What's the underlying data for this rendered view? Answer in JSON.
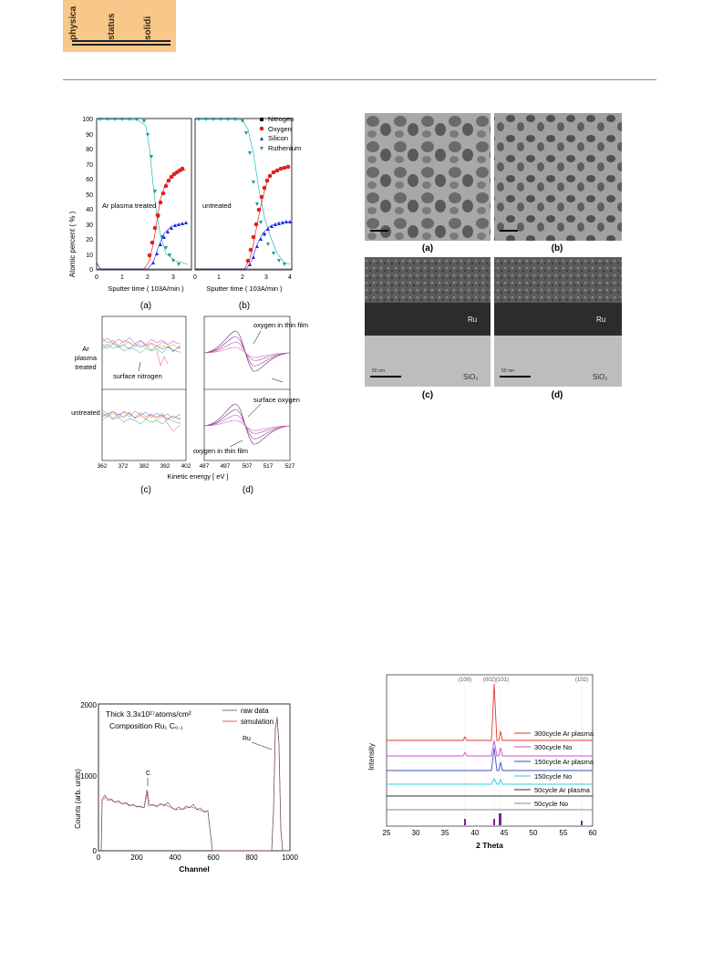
{
  "header": {
    "logo_words": [
      "physica",
      "status",
      "solidi"
    ]
  },
  "fig_left": {
    "y_label": "Atomic percent ( % )",
    "y_ticks": [
      "100",
      "90",
      "80",
      "70",
      "60",
      "50",
      "40",
      "30",
      "20",
      "10",
      "0"
    ],
    "panel_a": {
      "label": "Ar plasma treated",
      "x_label": "Sputter time ( 103A/min )",
      "x_ticks": [
        "0",
        "1",
        "2",
        "3"
      ],
      "caption": "(a)"
    },
    "panel_b": {
      "label": "untreated",
      "x_label": "Sputter time ( 103A/min )",
      "x_ticks": [
        "0",
        "1",
        "2",
        "3",
        "4"
      ],
      "caption": "(b)"
    },
    "legend": [
      "Nitrogen",
      "Oxygen",
      "Silicon",
      "Ruthenium"
    ],
    "panel_c": {
      "top_label": "Ar plasma treated",
      "annotation": "surface nitrogen",
      "bottom_label": "untreated",
      "x_ticks": [
        "362",
        "372",
        "382",
        "392",
        "402"
      ],
      "caption": "(c)"
    },
    "panel_d": {
      "ann1": "oxygen in thin film",
      "ann2": "surface oxygen",
      "ann3": "oxygen in thin film",
      "x_ticks": [
        "487",
        "497",
        "507",
        "517",
        "527"
      ],
      "caption": "(d)"
    },
    "x_label_cd": "Kinetic energy [ eV ]"
  },
  "fig_right": {
    "captions": [
      "(a)",
      "(b)",
      "(c)",
      "(d)"
    ],
    "ru_label": "Ru",
    "sio2_label": "SiO₂",
    "scale_label": "50 nm"
  },
  "fig_rbs": {
    "title_line1": "Thick 3.3x10¹⁷atoms/cm²",
    "title_line2": "Composition Ru₁ C₀.₁",
    "legend": [
      "raw data",
      "simulation"
    ],
    "y_label": "Counts (arb. units)",
    "x_label": "Channel",
    "y_ticks": [
      "2000",
      "1000",
      "0"
    ],
    "x_ticks": [
      "0",
      "200",
      "400",
      "600",
      "800",
      "1000"
    ],
    "peak_c": "C",
    "peak_ru": "Ru"
  },
  "fig_xrd": {
    "peaks": [
      "(100)",
      "(002)(101)",
      "(102)"
    ],
    "y_label": "Intensity",
    "x_label": "2 Theta",
    "x_ticks": [
      "25",
      "30",
      "35",
      "40",
      "45",
      "50",
      "55",
      "60"
    ],
    "legend": [
      "300cycle Ar plasma",
      "300cycle No",
      "150cycle Ar plasma",
      "150cycle No",
      "50cycle Ar plasma",
      "50cycle No"
    ],
    "colors": [
      "#e53935",
      "#d04adb",
      "#3f51b5",
      "#29d0d6",
      "#333333",
      "#888888"
    ]
  }
}
